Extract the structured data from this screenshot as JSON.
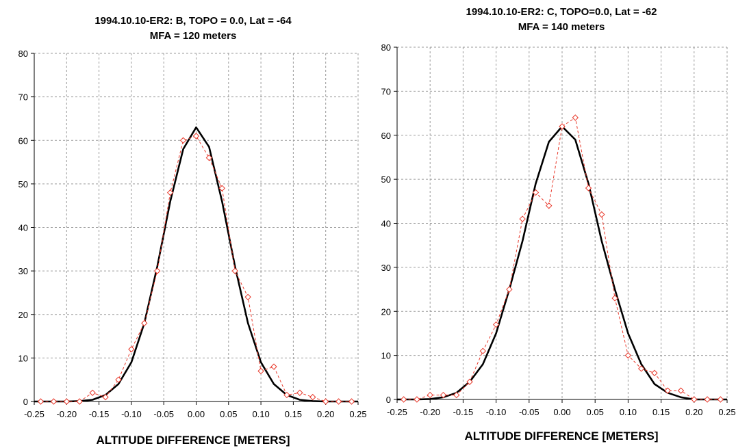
{
  "chart_data": [
    {
      "type": "line",
      "title": "1994.10.10-ER2: B, TOPO = 0.0, Lat = -64",
      "subtitle": "MFA = 120 meters",
      "xlabel": "ALTITUDE DIFFERENCE [METERS]",
      "ylabel": "",
      "xlim": [
        -0.25,
        0.25
      ],
      "ylim": [
        0,
        80
      ],
      "xticks": [
        "-0.25",
        "-0.20",
        "-0.15",
        "-0.10",
        "-0.05",
        "0.00",
        "0.05",
        "0.10",
        "0.15",
        "0.20",
        "0.25"
      ],
      "yticks": [
        "0",
        "10",
        "20",
        "30",
        "40",
        "50",
        "60",
        "70",
        "80"
      ],
      "grid": true,
      "series": [
        {
          "style": "solid",
          "color": "#000000",
          "x": [
            -0.25,
            -0.22,
            -0.2,
            -0.18,
            -0.16,
            -0.14,
            -0.12,
            -0.1,
            -0.08,
            -0.06,
            -0.04,
            -0.02,
            0.0,
            0.02,
            0.04,
            0.06,
            0.08,
            0.1,
            0.12,
            0.14,
            0.16,
            0.18,
            0.2,
            0.22,
            0.25
          ],
          "y": [
            0,
            0,
            0,
            0.1,
            0.4,
            1.5,
            4,
            9,
            18,
            31,
            46,
            58,
            63,
            58.5,
            46,
            31,
            18,
            9,
            4,
            1.5,
            0.4,
            0.1,
            0,
            0,
            0
          ]
        },
        {
          "style": "dashed-markers",
          "color": "#e8392b",
          "x": [
            -0.24,
            -0.22,
            -0.2,
            -0.18,
            -0.16,
            -0.14,
            -0.12,
            -0.1,
            -0.08,
            -0.06,
            -0.04,
            -0.02,
            0.0,
            0.02,
            0.04,
            0.06,
            0.08,
            0.1,
            0.12,
            0.14,
            0.16,
            0.18,
            0.2,
            0.22,
            0.24
          ],
          "y": [
            0,
            0,
            0,
            0,
            2,
            1,
            5,
            12,
            18,
            30,
            48,
            60,
            61,
            56,
            49,
            30,
            24,
            7,
            8,
            1.5,
            2,
            1,
            0,
            0,
            0
          ]
        }
      ]
    },
    {
      "type": "line",
      "title": "1994.10.10-ER2: C, TOPO=0.0, Lat = -62",
      "subtitle": "MFA = 140 meters",
      "xlabel": "ALTITUDE DIFFERENCE [METERS]",
      "ylabel": "",
      "xlim": [
        -0.25,
        0.25
      ],
      "ylim": [
        0,
        80
      ],
      "xticks": [
        "-0.25",
        "-0.20",
        "-0.15",
        "-0.10",
        "-0.05",
        "0.00",
        "0.05",
        "0.10",
        "0.15",
        "0.20",
        "0.25"
      ],
      "yticks": [
        "0",
        "10",
        "20",
        "30",
        "40",
        "50",
        "60",
        "70",
        "80"
      ],
      "grid": true,
      "series": [
        {
          "style": "solid",
          "color": "#000000",
          "x": [
            -0.25,
            -0.22,
            -0.2,
            -0.18,
            -0.16,
            -0.14,
            -0.12,
            -0.1,
            -0.08,
            -0.06,
            -0.04,
            -0.02,
            0.0,
            0.02,
            0.04,
            0.06,
            0.08,
            0.1,
            0.12,
            0.14,
            0.16,
            0.18,
            0.2,
            0.22,
            0.25
          ],
          "y": [
            0,
            0,
            0.1,
            0.5,
            1.5,
            4,
            8,
            15,
            25,
            36,
            49,
            58.5,
            62,
            59,
            49,
            36,
            25,
            15,
            8,
            3.5,
            1.5,
            0.5,
            0,
            0,
            0
          ]
        },
        {
          "style": "dashed-markers",
          "color": "#e8392b",
          "x": [
            -0.24,
            -0.22,
            -0.2,
            -0.18,
            -0.16,
            -0.14,
            -0.12,
            -0.1,
            -0.08,
            -0.06,
            -0.04,
            -0.02,
            0.0,
            0.02,
            0.04,
            0.06,
            0.08,
            0.1,
            0.12,
            0.14,
            0.16,
            0.18,
            0.2,
            0.22,
            0.24
          ],
          "y": [
            0,
            0,
            1,
            1,
            1,
            4,
            11,
            17,
            25,
            41,
            47,
            44,
            62,
            64,
            48,
            42,
            23,
            10,
            7,
            6,
            2,
            2,
            0,
            0,
            0
          ]
        }
      ]
    }
  ]
}
